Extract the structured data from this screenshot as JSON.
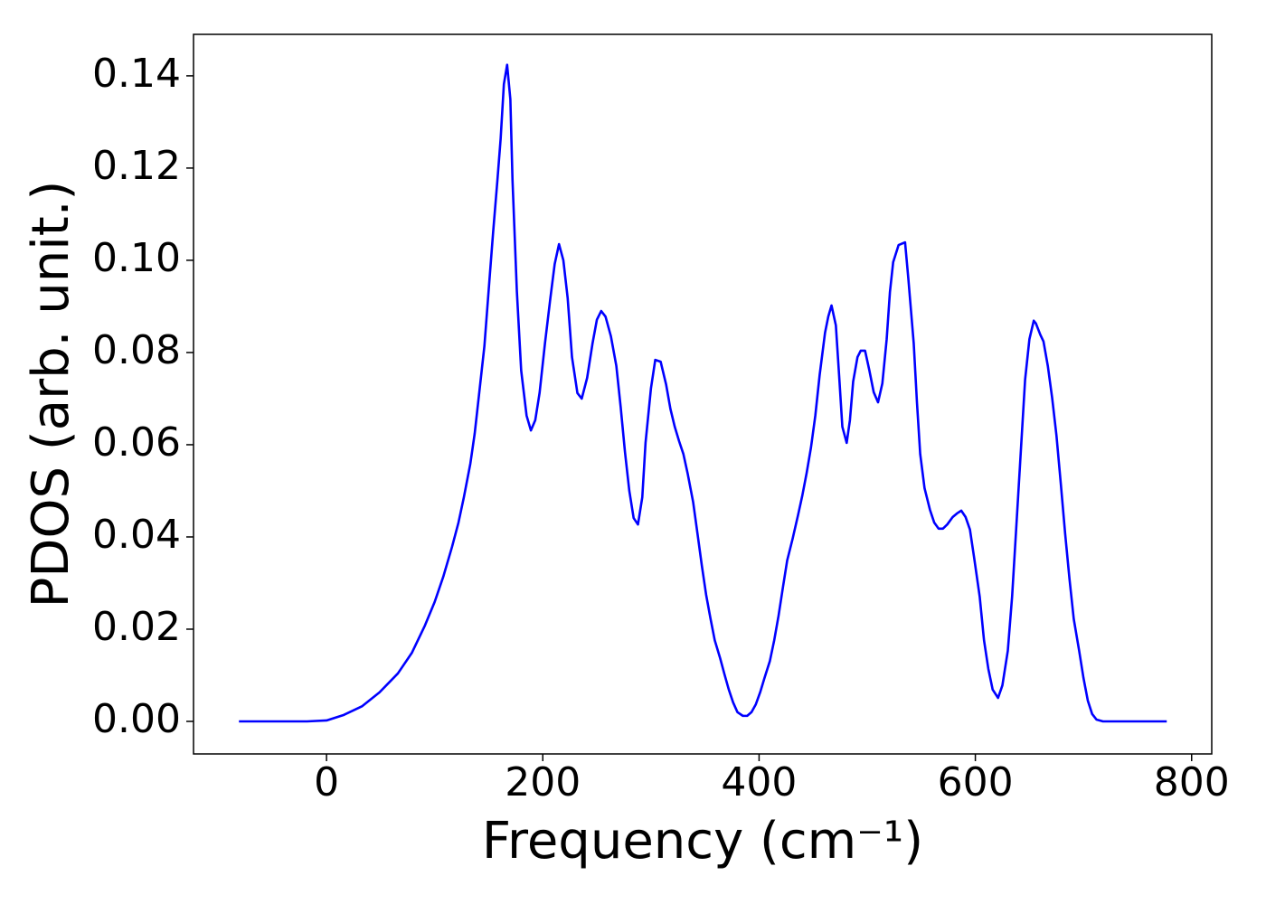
{
  "chart_data": {
    "type": "line",
    "xlabel": "Frequency (cm⁻¹)",
    "ylabel": "PDOS (arb. unit.)",
    "xlim": [
      -123,
      818.6
    ],
    "ylim": [
      -0.00706,
      0.149
    ],
    "xticks": [
      0,
      200,
      400,
      600,
      800
    ],
    "yticks": [
      {
        "value": 0,
        "label": "0.00"
      },
      0.02,
      0.04,
      0.06,
      0.08,
      {
        "value": 0.1,
        "label": "0.10"
      },
      0.12,
      0.14
    ],
    "grid": false,
    "series": [
      {
        "color": "#0000ff",
        "x": [
          -81,
          -18,
          0,
          16,
          33,
          49,
          66,
          79,
          91,
          100,
          108,
          116,
          122,
          127,
          133,
          137,
          141,
          146,
          150,
          154,
          158,
          161,
          164,
          167,
          170,
          172,
          176,
          180,
          185,
          189,
          193,
          197,
          202,
          207,
          211,
          215,
          219,
          223,
          227,
          232,
          236,
          241,
          246,
          250,
          254,
          258,
          263,
          268,
          272,
          276,
          280,
          284,
          288,
          292,
          295,
          300,
          304,
          309,
          314,
          318,
          322,
          326,
          330,
          334,
          339,
          343,
          347,
          351,
          355,
          359,
          364,
          368,
          372,
          376,
          380,
          385,
          389,
          393,
          397,
          401,
          405,
          410,
          414,
          418,
          422,
          426,
          431,
          436,
          440,
          444,
          448,
          452,
          456,
          461,
          464,
          467,
          471,
          474,
          477,
          481,
          484,
          487,
          491,
          494,
          498,
          502,
          506,
          510,
          514,
          518,
          521,
          524,
          529,
          535,
          538,
          543,
          546,
          549,
          553,
          558,
          562,
          566,
          570,
          574,
          579,
          583,
          587,
          591,
          595,
          599,
          604,
          608,
          612,
          616,
          621,
          625,
          630,
          634,
          638,
          642,
          646,
          650,
          654,
          656,
          660,
          663,
          667,
          671,
          675,
          679,
          683,
          687,
          691,
          696,
          700,
          704,
          708,
          712,
          718,
          777
        ],
        "values": [
          0,
          0,
          0.0002,
          0.0014,
          0.0033,
          0.0063,
          0.0104,
          0.0149,
          0.0208,
          0.0259,
          0.0314,
          0.0378,
          0.0431,
          0.0486,
          0.0559,
          0.0624,
          0.0708,
          0.0814,
          0.0937,
          0.1059,
          0.1173,
          0.1263,
          0.1382,
          0.1424,
          0.1349,
          0.1173,
          0.0933,
          0.0761,
          0.0663,
          0.0631,
          0.0653,
          0.0712,
          0.082,
          0.0918,
          0.0992,
          0.1035,
          0.1,
          0.0918,
          0.079,
          0.0712,
          0.07,
          0.0745,
          0.082,
          0.0871,
          0.089,
          0.0878,
          0.0835,
          0.0771,
          0.0682,
          0.0584,
          0.05,
          0.0441,
          0.0427,
          0.0486,
          0.0604,
          0.0722,
          0.0784,
          0.078,
          0.0731,
          0.0678,
          0.0639,
          0.0608,
          0.058,
          0.0537,
          0.0476,
          0.0408,
          0.0339,
          0.0275,
          0.0224,
          0.0176,
          0.0137,
          0.0102,
          0.0069,
          0.0041,
          0.002,
          0.0012,
          0.0012,
          0.002,
          0.0037,
          0.0063,
          0.0094,
          0.0131,
          0.0176,
          0.0229,
          0.029,
          0.0349,
          0.0396,
          0.0447,
          0.049,
          0.0539,
          0.0594,
          0.0663,
          0.0751,
          0.0843,
          0.0878,
          0.0902,
          0.0859,
          0.0751,
          0.0639,
          0.0604,
          0.0653,
          0.0737,
          0.079,
          0.0804,
          0.0804,
          0.0761,
          0.0714,
          0.0692,
          0.0733,
          0.0829,
          0.0931,
          0.0996,
          0.1033,
          0.1039,
          0.0961,
          0.082,
          0.0692,
          0.058,
          0.0506,
          0.0459,
          0.0431,
          0.0418,
          0.0418,
          0.0427,
          0.0443,
          0.0451,
          0.0457,
          0.0443,
          0.0416,
          0.0353,
          0.0271,
          0.0176,
          0.0114,
          0.0069,
          0.0051,
          0.0078,
          0.0153,
          0.0271,
          0.0427,
          0.0584,
          0.0741,
          0.0829,
          0.0869,
          0.0863,
          0.0839,
          0.0824,
          0.0771,
          0.0702,
          0.062,
          0.0516,
          0.0408,
          0.031,
          0.0222,
          0.0153,
          0.0094,
          0.0045,
          0.0016,
          0.0004,
          0,
          0
        ]
      }
    ]
  }
}
